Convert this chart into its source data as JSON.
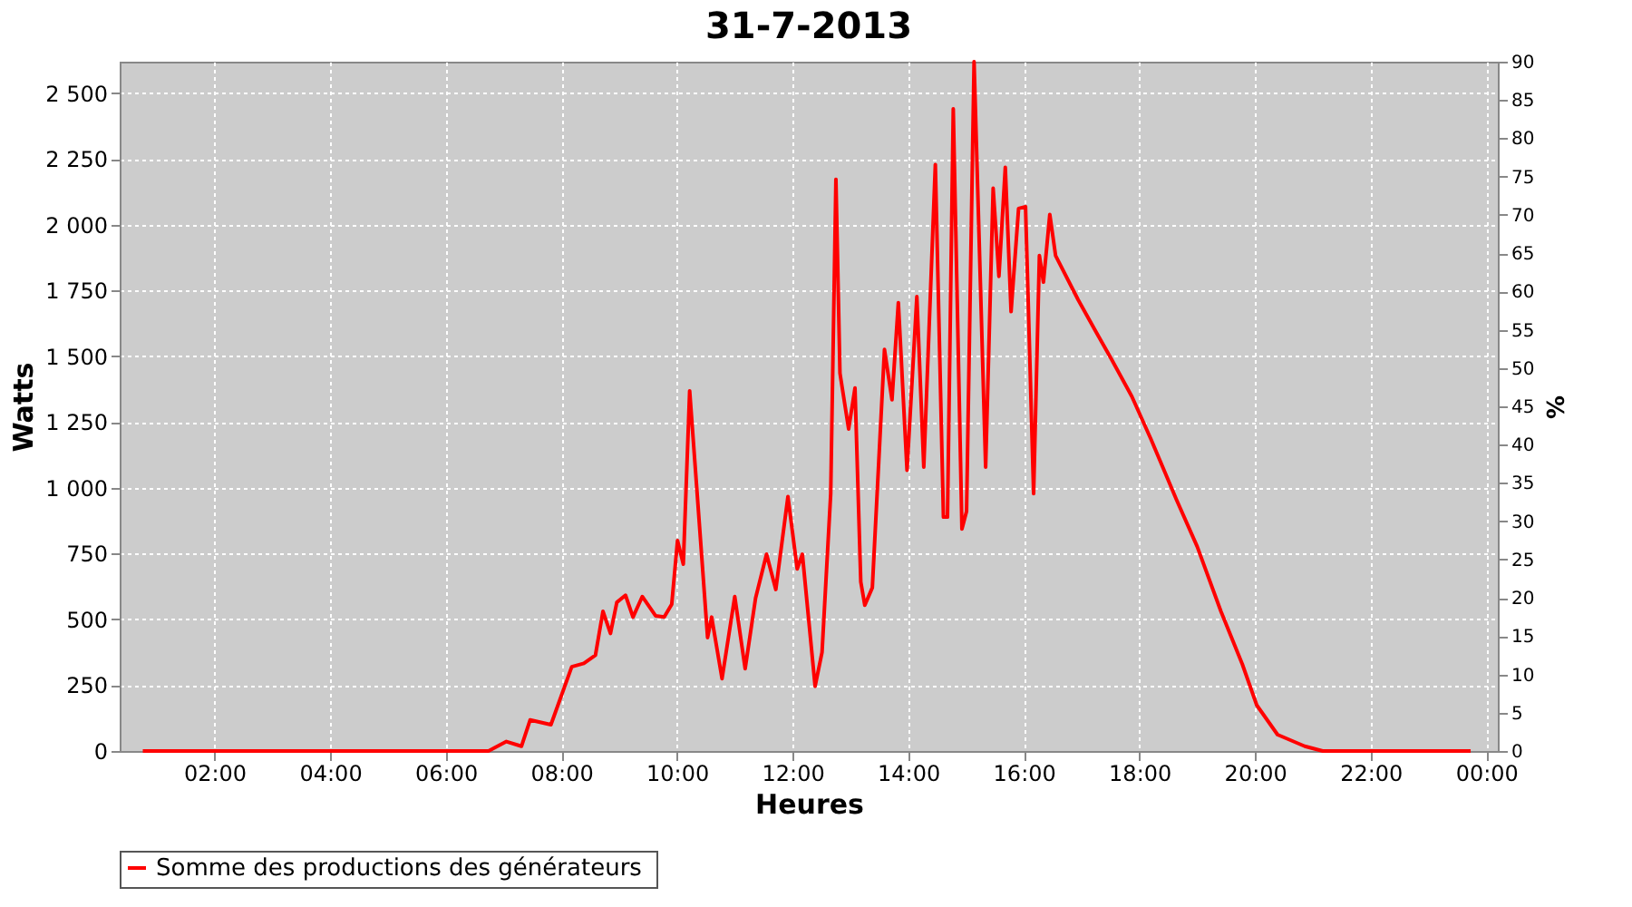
{
  "chart_data": {
    "type": "line",
    "title": "31-7-2013",
    "xlabel": "Heures",
    "ylabel": "Watts",
    "y2label": "%",
    "x": [
      0.76,
      6.74,
      7.05,
      7.31,
      7.46,
      7.82,
      8.18,
      8.39,
      8.59,
      8.72,
      8.85,
      8.96,
      9.11,
      9.24,
      9.4,
      9.63,
      9.78,
      9.91,
      10.01,
      10.11,
      10.22,
      10.35,
      10.53,
      10.6,
      10.78,
      11.0,
      11.18,
      11.36,
      11.55,
      11.71,
      11.92,
      12.08,
      12.17,
      12.39,
      12.51,
      12.66,
      12.75,
      12.82,
      12.97,
      13.08,
      13.18,
      13.25,
      13.38,
      13.59,
      13.72,
      13.83,
      13.98,
      14.15,
      14.27,
      14.47,
      14.61,
      14.68,
      14.78,
      14.93,
      15.01,
      15.14,
      15.34,
      15.47,
      15.57,
      15.68,
      15.78,
      15.91,
      16.03,
      16.17,
      16.27,
      16.34,
      16.45,
      16.55,
      16.94,
      17.25,
      17.51,
      17.87,
      18.2,
      18.64,
      19.0,
      19.41,
      19.78,
      20.03,
      20.39,
      20.86,
      21.17,
      23.73
    ],
    "series": [
      {
        "name": "Somme des productions des  générateurs",
        "color": "#ff0000",
        "values": [
          0,
          0,
          36,
          18,
          118,
          100,
          320,
          333,
          364,
          531,
          447,
          565,
          592,
          509,
          587,
          514,
          509,
          558,
          800,
          710,
          1369,
          978,
          431,
          509,
          275,
          587,
          313,
          581,
          748,
          614,
          967,
          692,
          748,
          246,
          375,
          978,
          2173,
          1436,
          1224,
          1380,
          643,
          554,
          621,
          1526,
          1335,
          1704,
          1067,
          1727,
          1079,
          2229,
          889,
          889,
          2441,
          844,
          911,
          2620,
          1079,
          2139,
          1804,
          2218,
          1670,
          2062,
          2069,
          978,
          1883,
          1782,
          2039,
          1883,
          1715,
          1593,
          1492,
          1347,
          1185,
          956,
          777,
          531,
          330,
          174,
          62,
          18,
          0,
          0
        ]
      }
    ],
    "xlim": [
      0.36,
      24.2
    ],
    "xticks": [
      {
        "value": 2,
        "label": "02:00"
      },
      {
        "value": 4,
        "label": "04:00"
      },
      {
        "value": 6,
        "label": "06:00"
      },
      {
        "value": 8,
        "label": "08:00"
      },
      {
        "value": 10,
        "label": "10:00"
      },
      {
        "value": 12,
        "label": "12:00"
      },
      {
        "value": 14,
        "label": "14:00"
      },
      {
        "value": 16,
        "label": "16:00"
      },
      {
        "value": 18,
        "label": "18:00"
      },
      {
        "value": 20,
        "label": "20:00"
      },
      {
        "value": 22,
        "label": "22:00"
      },
      {
        "value": 24,
        "label": "00:00"
      }
    ],
    "ylim": [
      0,
      2620
    ],
    "yticks": [
      0,
      250,
      500,
      750,
      {
        "value": 1000,
        "label": "1 000"
      },
      {
        "value": 1250,
        "label": "1 250"
      },
      {
        "value": 1500,
        "label": "1 500"
      },
      {
        "value": 1750,
        "label": "1 750"
      },
      {
        "value": 2000,
        "label": "2 000"
      },
      {
        "value": 2250,
        "label": "2 250"
      },
      {
        "value": 2500,
        "label": "2 500"
      }
    ],
    "y2lim": [
      0,
      90
    ],
    "y2ticks": [
      0,
      5,
      10,
      15,
      20,
      25,
      30,
      35,
      40,
      45,
      50,
      55,
      60,
      65,
      70,
      75,
      80,
      85,
      90
    ],
    "grid": true,
    "legend": "bottom"
  }
}
